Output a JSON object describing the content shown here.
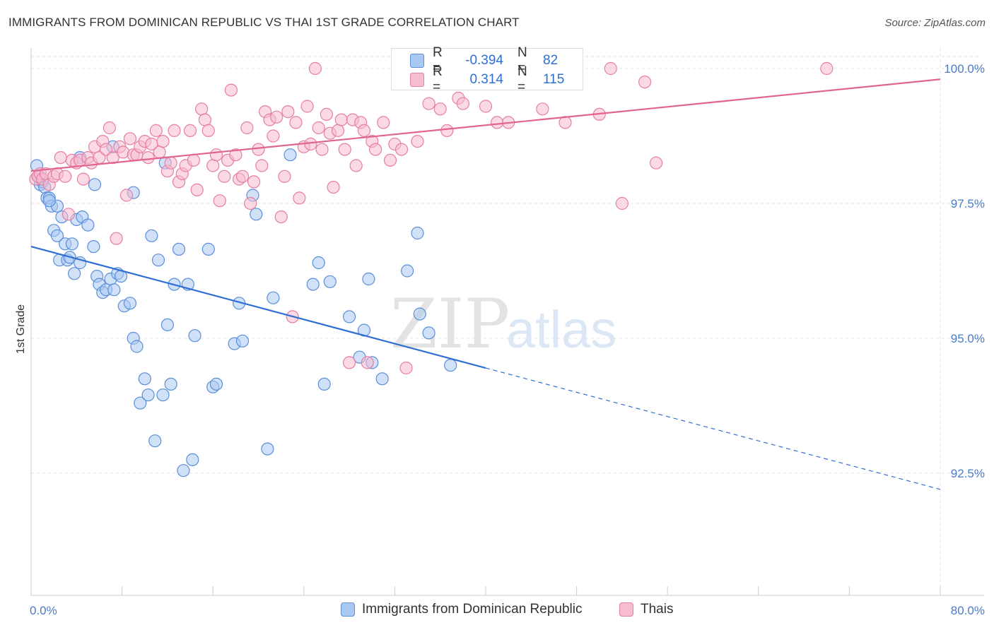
{
  "title": "IMMIGRANTS FROM DOMINICAN REPUBLIC VS THAI 1ST GRADE CORRELATION CHART",
  "source": "Source: ZipAtlas.com",
  "watermark": {
    "zip": "ZIP",
    "atlas": "atlas"
  },
  "stats": [
    {
      "r_label": "R =",
      "r_value": "-0.394",
      "n_label": "N =",
      "n_value": "82",
      "color": "#a9c8f2",
      "border": "#5b8fd9"
    },
    {
      "r_label": "R =",
      "r_value": "0.314",
      "n_label": "N =",
      "n_value": "115",
      "color": "#f7bcd0",
      "border": "#e57fa3"
    }
  ],
  "legend": [
    {
      "label": "Immigrants from Dominican Republic",
      "color": "#a9c8f2",
      "border": "#5b8fd9"
    },
    {
      "label": "Thais",
      "color": "#f7bcd0",
      "border": "#e57fa3"
    }
  ],
  "chart_data": {
    "type": "scatter",
    "title": "IMMIGRANTS FROM DOMINICAN REPUBLIC VS THAI 1ST GRADE CORRELATION CHART",
    "xlabel": "",
    "ylabel": "1st Grade",
    "xlim": [
      0,
      80
    ],
    "ylim": [
      90.0,
      100.5
    ],
    "x_tick_labels": [
      "0.0%",
      "80.0%"
    ],
    "y_ticks": [
      92.5,
      95.0,
      97.5,
      100.0
    ],
    "y_tick_labels": [
      "92.5%",
      "95.0%",
      "97.5%",
      "100.0%"
    ],
    "grid": true,
    "legend_position": "bottom",
    "series": [
      {
        "name": "Immigrants from Dominican Republic",
        "color": "#a9c8f2",
        "stroke": "#5b8fd9",
        "trend": {
          "x0": 0,
          "y0": 96.7,
          "x1": 40,
          "y1": 94.45,
          "dash_to_x": 80,
          "dash_to_y": 92.2,
          "color": "#2e6fd1"
        },
        "points": [
          [
            0.5,
            98.2
          ],
          [
            0.7,
            98.0
          ],
          [
            0.8,
            97.85
          ],
          [
            1.0,
            97.9
          ],
          [
            1.2,
            97.8
          ],
          [
            1.4,
            97.6
          ],
          [
            1.6,
            97.6
          ],
          [
            1.8,
            97.45
          ],
          [
            2.0,
            97.0
          ],
          [
            2.3,
            96.9
          ],
          [
            2.5,
            96.45
          ],
          [
            2.7,
            97.25
          ],
          [
            3.0,
            96.75
          ],
          [
            3.2,
            96.45
          ],
          [
            3.4,
            96.5
          ],
          [
            3.6,
            96.75
          ],
          [
            3.8,
            96.2
          ],
          [
            4.0,
            97.2
          ],
          [
            4.3,
            96.4
          ],
          [
            4.5,
            97.25
          ],
          [
            5.0,
            97.1
          ],
          [
            5.5,
            96.7
          ],
          [
            5.8,
            96.15
          ],
          [
            6.0,
            96.0
          ],
          [
            6.3,
            95.85
          ],
          [
            6.6,
            95.9
          ],
          [
            7.0,
            96.1
          ],
          [
            7.3,
            95.9
          ],
          [
            7.6,
            96.2
          ],
          [
            7.9,
            96.15
          ],
          [
            8.2,
            95.6
          ],
          [
            8.7,
            95.65
          ],
          [
            9.0,
            95.0
          ],
          [
            9.3,
            94.85
          ],
          [
            9.6,
            93.8
          ],
          [
            10.0,
            94.25
          ],
          [
            10.3,
            93.95
          ],
          [
            10.6,
            96.9
          ],
          [
            10.9,
            93.1
          ],
          [
            11.2,
            96.45
          ],
          [
            11.6,
            93.95
          ],
          [
            12.0,
            95.25
          ],
          [
            12.3,
            94.15
          ],
          [
            12.6,
            96.0
          ],
          [
            13.0,
            96.65
          ],
          [
            13.4,
            92.55
          ],
          [
            13.8,
            96.0
          ],
          [
            14.2,
            92.75
          ],
          [
            14.4,
            95.05
          ],
          [
            15.6,
            96.65
          ],
          [
            16.0,
            94.1
          ],
          [
            16.3,
            94.15
          ],
          [
            17.9,
            94.9
          ],
          [
            18.3,
            95.65
          ],
          [
            18.6,
            94.95
          ],
          [
            19.5,
            97.65
          ],
          [
            19.8,
            97.3
          ],
          [
            20.8,
            92.95
          ],
          [
            21.3,
            95.75
          ],
          [
            22.8,
            98.4
          ],
          [
            24.8,
            96.0
          ],
          [
            25.3,
            96.4
          ],
          [
            25.8,
            94.15
          ],
          [
            26.3,
            96.05
          ],
          [
            28.0,
            95.4
          ],
          [
            28.9,
            94.65
          ],
          [
            29.3,
            95.15
          ],
          [
            29.7,
            96.1
          ],
          [
            30.0,
            94.55
          ],
          [
            30.9,
            94.25
          ],
          [
            33.1,
            96.25
          ],
          [
            34.0,
            96.95
          ],
          [
            34.2,
            95.45
          ],
          [
            35.0,
            95.1
          ],
          [
            36.9,
            94.5
          ],
          [
            2.3,
            97.45
          ],
          [
            1.6,
            97.55
          ],
          [
            5.6,
            97.85
          ],
          [
            4.3,
            98.35
          ],
          [
            7.2,
            98.55
          ],
          [
            11.8,
            98.25
          ],
          [
            9.0,
            97.7
          ]
        ]
      },
      {
        "name": "Thais",
        "color": "#f7bcd0",
        "stroke": "#e57fa3",
        "trend": {
          "x0": 0,
          "y0": 98.1,
          "x1": 80,
          "y1": 99.8,
          "color": "#e0648f"
        },
        "points": [
          [
            0.4,
            97.95
          ],
          [
            0.6,
            98.0
          ],
          [
            0.8,
            98.05
          ],
          [
            1.0,
            97.95
          ],
          [
            1.3,
            98.05
          ],
          [
            1.6,
            97.85
          ],
          [
            2.0,
            98.0
          ],
          [
            2.3,
            98.05
          ],
          [
            2.6,
            98.35
          ],
          [
            3.0,
            98.0
          ],
          [
            3.3,
            97.3
          ],
          [
            3.6,
            98.3
          ],
          [
            4.0,
            98.25
          ],
          [
            4.3,
            98.3
          ],
          [
            4.6,
            97.95
          ],
          [
            5.0,
            98.35
          ],
          [
            5.3,
            98.25
          ],
          [
            5.6,
            98.55
          ],
          [
            6.0,
            98.35
          ],
          [
            6.3,
            98.65
          ],
          [
            6.6,
            98.5
          ],
          [
            6.9,
            98.9
          ],
          [
            7.2,
            98.35
          ],
          [
            7.5,
            96.85
          ],
          [
            7.8,
            98.55
          ],
          [
            8.1,
            98.45
          ],
          [
            8.4,
            97.65
          ],
          [
            8.7,
            98.7
          ],
          [
            9.0,
            98.4
          ],
          [
            9.3,
            98.4
          ],
          [
            9.6,
            98.55
          ],
          [
            10.0,
            98.65
          ],
          [
            10.3,
            98.35
          ],
          [
            10.6,
            98.6
          ],
          [
            11.0,
            98.85
          ],
          [
            11.3,
            98.45
          ],
          [
            11.6,
            98.65
          ],
          [
            12.0,
            98.1
          ],
          [
            12.3,
            98.25
          ],
          [
            12.6,
            98.85
          ],
          [
            13.0,
            97.9
          ],
          [
            13.3,
            98.05
          ],
          [
            13.6,
            98.2
          ],
          [
            14.0,
            98.85
          ],
          [
            14.3,
            98.3
          ],
          [
            14.6,
            97.75
          ],
          [
            15.0,
            99.25
          ],
          [
            15.3,
            99.05
          ],
          [
            15.6,
            98.85
          ],
          [
            16.0,
            98.2
          ],
          [
            16.3,
            98.4
          ],
          [
            16.6,
            97.55
          ],
          [
            17.0,
            98.0
          ],
          [
            17.3,
            98.3
          ],
          [
            17.6,
            99.6
          ],
          [
            18.0,
            98.4
          ],
          [
            18.3,
            97.95
          ],
          [
            18.6,
            98.0
          ],
          [
            19.0,
            98.9
          ],
          [
            19.3,
            97.5
          ],
          [
            19.6,
            97.9
          ],
          [
            20.0,
            98.5
          ],
          [
            20.3,
            98.2
          ],
          [
            20.6,
            99.2
          ],
          [
            21.0,
            99.05
          ],
          [
            21.3,
            98.75
          ],
          [
            21.6,
            99.1
          ],
          [
            22.0,
            97.25
          ],
          [
            22.3,
            98.0
          ],
          [
            22.6,
            99.2
          ],
          [
            23.0,
            95.4
          ],
          [
            23.3,
            99.0
          ],
          [
            23.6,
            97.6
          ],
          [
            24.0,
            98.55
          ],
          [
            24.3,
            99.3
          ],
          [
            24.6,
            98.6
          ],
          [
            25.0,
            100.0
          ],
          [
            25.3,
            98.9
          ],
          [
            25.6,
            98.5
          ],
          [
            26.0,
            99.15
          ],
          [
            26.3,
            98.8
          ],
          [
            26.6,
            97.8
          ],
          [
            27.0,
            98.85
          ],
          [
            27.3,
            99.05
          ],
          [
            27.6,
            98.5
          ],
          [
            28.0,
            94.55
          ],
          [
            28.3,
            99.05
          ],
          [
            28.6,
            98.2
          ],
          [
            29.0,
            99.0
          ],
          [
            29.3,
            98.85
          ],
          [
            29.6,
            94.55
          ],
          [
            30.0,
            98.65
          ],
          [
            30.3,
            98.5
          ],
          [
            31.0,
            99.0
          ],
          [
            31.6,
            98.3
          ],
          [
            32.0,
            98.6
          ],
          [
            32.6,
            98.5
          ],
          [
            33.0,
            94.45
          ],
          [
            34.0,
            98.65
          ],
          [
            35.0,
            99.35
          ],
          [
            36.0,
            99.25
          ],
          [
            36.6,
            98.85
          ],
          [
            37.6,
            99.45
          ],
          [
            38.0,
            99.35
          ],
          [
            40.0,
            99.3
          ],
          [
            41.0,
            99.0
          ],
          [
            42.0,
            99.0
          ],
          [
            45.0,
            99.25
          ],
          [
            47.0,
            99.0
          ],
          [
            50.0,
            99.15
          ],
          [
            51.0,
            100.0
          ],
          [
            52.0,
            97.5
          ],
          [
            54.0,
            99.75
          ],
          [
            55.0,
            98.25
          ],
          [
            70.0,
            100.0
          ]
        ]
      }
    ]
  }
}
